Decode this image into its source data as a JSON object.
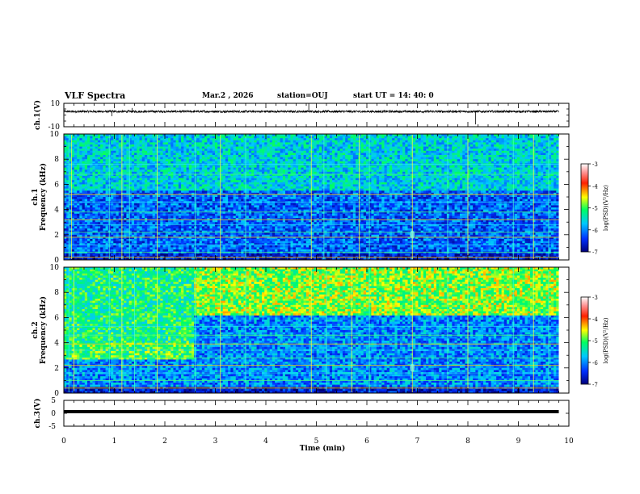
{
  "header": {
    "title": "VLF Spectra",
    "date": "Mar.2 , 2026",
    "station": "station=OUJ",
    "start_time": "start UT = 14: 40: 0"
  },
  "chart_data": [
    {
      "id": "ch1-waveform",
      "type": "line",
      "ylabel": "ch.1(V)",
      "ylim": [
        -10,
        10
      ],
      "y_tick_labels": [
        "10",
        "-10"
      ],
      "baseline_value": 3,
      "noise_amplitude": 1,
      "spikes": [
        {
          "t_min": 0.95,
          "value": -1
        },
        {
          "t_min": 1.35,
          "value": 6
        },
        {
          "t_min": 4.85,
          "value": 10
        },
        {
          "t_min": 8.15,
          "value": -8
        }
      ]
    },
    {
      "id": "ch1-spectrogram",
      "type": "heatmap",
      "ylabel": "ch.1\nFrequency (kHz)",
      "ylim": [
        0,
        10
      ],
      "xlim": [
        0,
        10
      ],
      "data_end_min": 9.8,
      "y_tick_labels": [
        "0",
        "2",
        "4",
        "6",
        "8",
        "10"
      ],
      "colorbar": {
        "label": "log(PSD)(V²/Hz)",
        "range": [
          -7,
          -3
        ],
        "tick_labels": [
          "-3",
          "-4",
          "-5",
          "-6",
          "-7"
        ]
      },
      "features": {
        "background_log_psd": -6.2,
        "upper_band_khz": [
          5.5,
          10
        ],
        "upper_band_log_psd": -5.6,
        "sferic_times_min": [
          0.1,
          0.15,
          0.9,
          1.15,
          1.3,
          1.85,
          2.6,
          3.1,
          3.6,
          4.9,
          5.15,
          5.85,
          6.05,
          6.9,
          7.6,
          8.0,
          8.9,
          9.3,
          9.6
        ],
        "horizontal_lines_khz": [
          0.2,
          0.6,
          1.2,
          1.8,
          2.2,
          2.8,
          3.2,
          3.8,
          4.6,
          5.2,
          6.8,
          7.6
        ],
        "whistler_burst": {
          "t_min": 6.9,
          "khz": 2.0
        }
      }
    },
    {
      "id": "ch2-spectrogram",
      "type": "heatmap",
      "ylabel": "ch.2\nFrequency (kHz)",
      "ylim": [
        0,
        10
      ],
      "xlim": [
        0,
        10
      ],
      "data_end_min": 9.8,
      "y_tick_labels": [
        "0",
        "2",
        "4",
        "6",
        "8",
        "10"
      ],
      "colorbar": {
        "label": "log(PSD)(V²/Hz)",
        "range": [
          -7,
          -3
        ],
        "tick_labels": [
          "-3",
          "-4",
          "-5",
          "-6",
          "-7"
        ]
      },
      "features": {
        "background_log_psd": -6.0,
        "upper_band_khz": [
          6.2,
          10
        ],
        "upper_band_log_psd": -4.8,
        "early_broadband_end_min": 2.6,
        "early_broadband_khz": [
          2.6,
          10
        ],
        "early_broadband_log_psd": -5.2,
        "sferic_times_min": [
          0.1,
          0.2,
          0.9,
          1.15,
          1.4,
          1.85,
          2.6,
          3.1,
          3.6,
          4.9,
          5.2,
          5.7,
          6.05,
          6.9,
          7.6,
          8.0,
          8.9,
          9.3,
          9.6
        ],
        "horizontal_lines_khz": [
          0.4,
          1.0,
          1.6,
          2.2,
          2.8,
          3.4,
          3.9,
          4.6,
          5.3
        ],
        "whistler_burst": {
          "t_min": 6.9,
          "khz": 2.0
        }
      }
    },
    {
      "id": "ch3-waveform",
      "type": "line",
      "ylabel": "ch.3(V)",
      "ylim": [
        -5,
        5
      ],
      "y_tick_labels": [
        "5",
        "0",
        "-5"
      ],
      "baseline_value": 0
    }
  ],
  "x_axis": {
    "label": "Time (min)",
    "range": [
      0,
      10
    ],
    "tick_labels": [
      "0",
      "1",
      "2",
      "3",
      "4",
      "5",
      "6",
      "7",
      "8",
      "9",
      "10"
    ]
  }
}
